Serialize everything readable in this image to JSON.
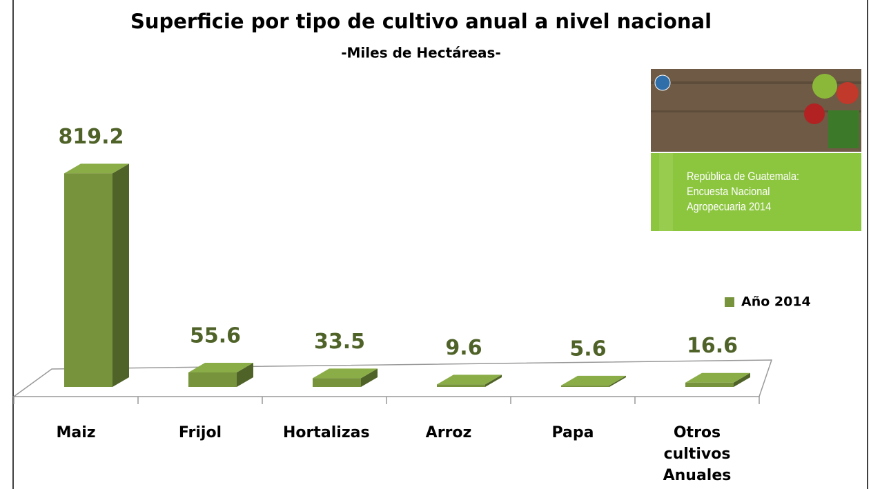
{
  "chart_data": {
    "type": "bar",
    "title": "Superficie por tipo de cultivo  anual a nivel nacional",
    "subtitle": "-Miles de Hectáreas-",
    "categories": [
      "Maiz",
      "Frijol",
      "Hortalizas",
      "Arroz",
      "Papa",
      "Otros cultivos Anuales"
    ],
    "series": [
      {
        "name": "Año 2014",
        "color": "#77933c",
        "values": [
          819.2,
          55.6,
          33.5,
          9.6,
          5.6,
          16.6
        ]
      }
    ],
    "annotation": "República de Guatemala: Encuesta Nacional Agropecuaria 2014",
    "legend": "right"
  }
}
